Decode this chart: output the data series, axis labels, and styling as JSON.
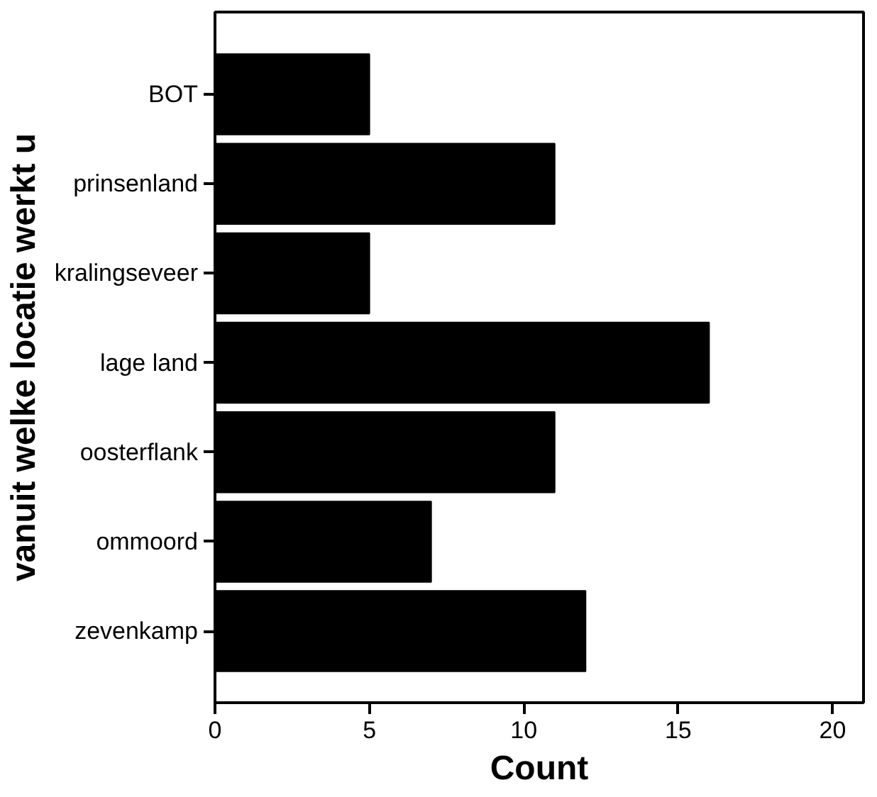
{
  "chart_data": {
    "type": "bar",
    "orientation": "horizontal",
    "xlabel": "Count",
    "ylabel": "vanuit welke locatie werkt u",
    "categories": [
      "BOT",
      "prinsenland",
      "kralingseveer",
      "lage land",
      "oosterflank",
      "ommoord",
      "zevenkamp"
    ],
    "values": [
      5,
      11,
      5,
      16,
      11,
      7,
      12
    ],
    "color": "#000000",
    "xlim": [
      0,
      21
    ],
    "xticks": [
      0,
      5,
      10,
      15,
      20
    ],
    "grid": false
  }
}
